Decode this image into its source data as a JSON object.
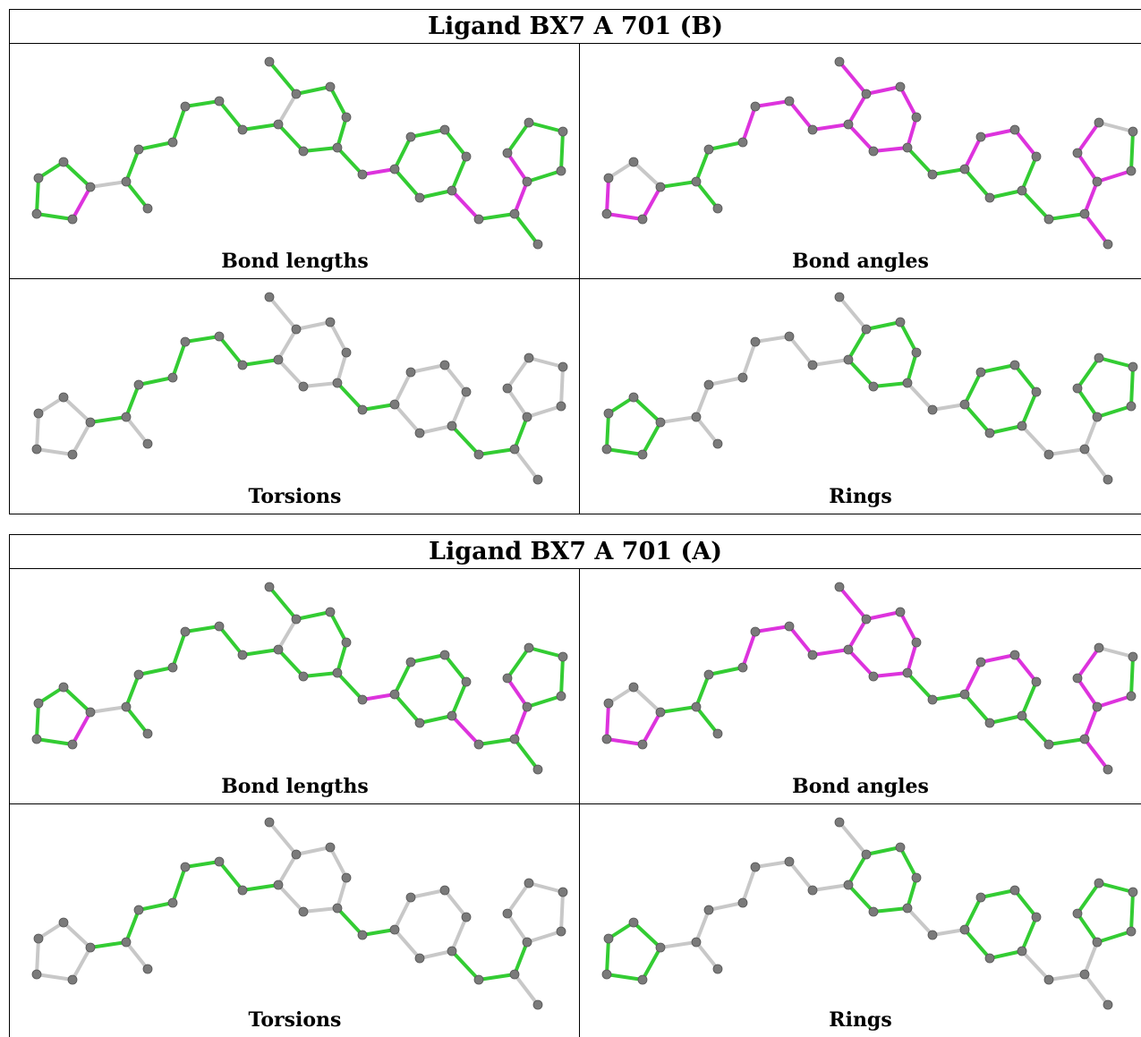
{
  "colors": {
    "ok_bond": "#33cc33",
    "outlier_bond": "#dd33dd",
    "neutral_bond": "#c8c8c8",
    "atom": "#7a7a7a"
  },
  "blocks": [
    {
      "title": "Ligand BX7 A 701 (B)",
      "panels": {
        "bond_lengths": "Bond lengths",
        "bond_angles": "Bond angles",
        "torsions": "Torsions",
        "rings": "Rings"
      }
    },
    {
      "title": "Ligand BX7 A 701 (A)",
      "panels": {
        "bond_lengths": "Bond lengths",
        "bond_angles": "Bond angles",
        "torsions": "Torsions",
        "rings": "Rings"
      }
    }
  ]
}
